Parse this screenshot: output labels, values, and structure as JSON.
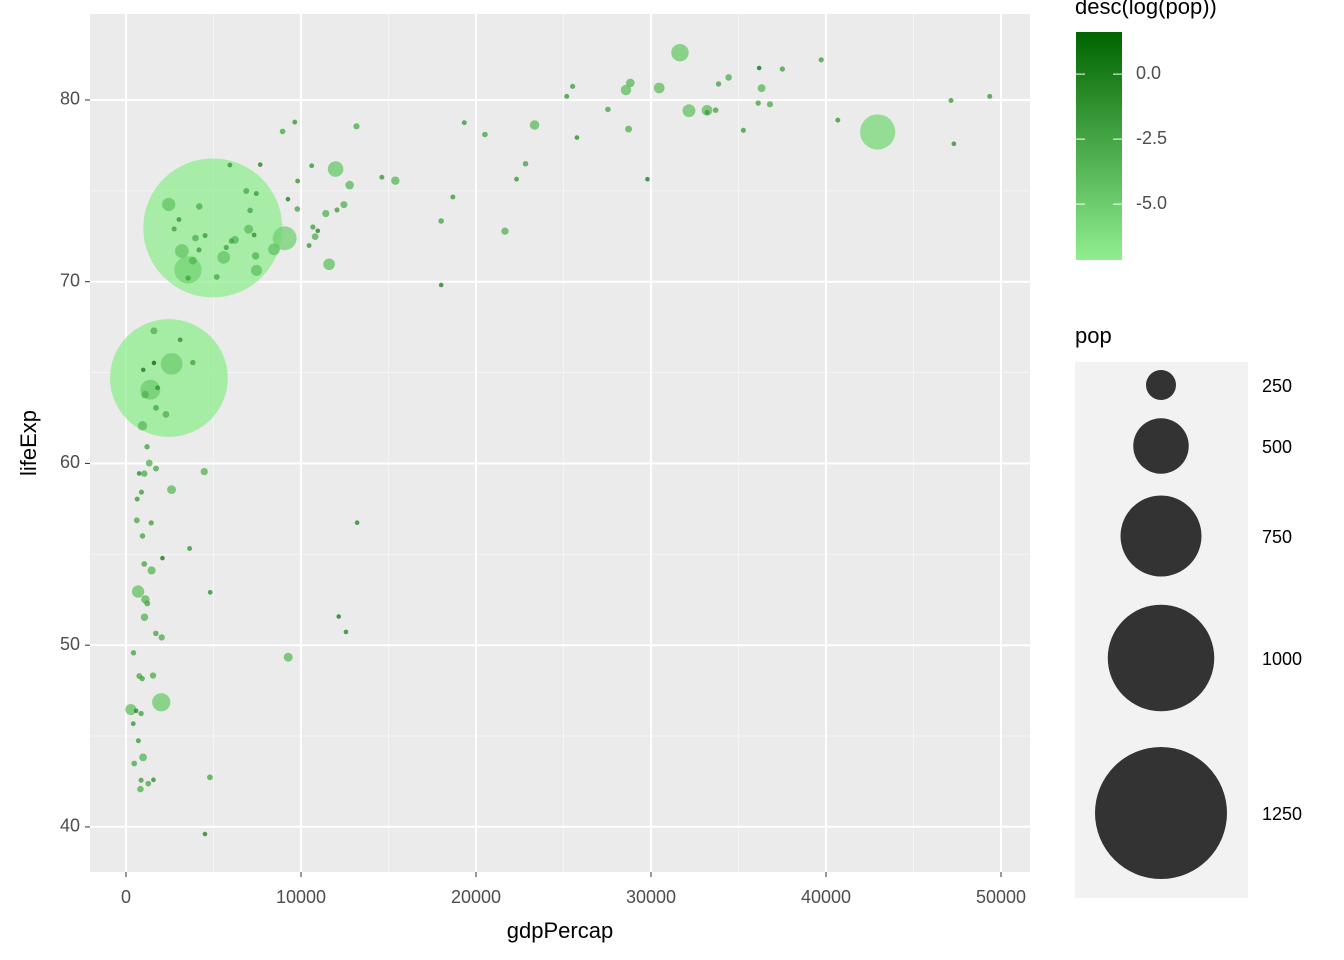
{
  "chart_data": {
    "type": "scatter",
    "x_label": "gdpPercap",
    "y_label": "lifeExp",
    "xlim": [
      -2057,
      51657
    ],
    "ylim": [
      37.52,
      84.73
    ],
    "xticks": [
      0,
      10000,
      20000,
      30000,
      40000,
      50000
    ],
    "yticks": [
      40,
      50,
      60,
      70,
      80
    ],
    "grid": true,
    "color_legend": {
      "title": "desc(log(pop))",
      "colorlim": [
        -7.15,
        1.62
      ],
      "low": "#90EE90",
      "high": "#006400",
      "ticks": [
        {
          "value": 0,
          "label": "0.0"
        },
        -2.5,
        {
          "value": -5,
          "label": "-5.0"
        }
      ]
    },
    "size_legend": {
      "title": "pop",
      "breaks": [
        250,
        500,
        750,
        1000,
        1250
      ],
      "color": "#333333"
    },
    "series": [
      {
        "name": "pop",
        "x": [
          975,
          5937,
          6223,
          4797,
          12779,
          34435,
          36126,
          29796,
          1391,
          33693,
          1441,
          3822,
          7446,
          12570,
          9066,
          10681,
          1217,
          430,
          1714,
          2042,
          36319,
          706,
          1704,
          13172,
          4959,
          7007,
          986,
          278,
          3633,
          9645,
          1545,
          14619,
          8948,
          22833,
          35278,
          2082,
          6025,
          6873,
          5581,
          5728,
          12154,
          641,
          691,
          33207,
          30470,
          13206,
          753,
          32170,
          1328,
          27538,
          5186,
          943,
          579,
          1202,
          3548,
          39725,
          18009,
          36181,
          2452,
          3541,
          11606,
          4471,
          40676,
          25523,
          28570,
          7321,
          31656,
          4519,
          1463,
          1593,
          23348,
          47307,
          10461,
          1569,
          415,
          12057,
          1045,
          759,
          12452,
          1043,
          1803,
          10957,
          11978,
          3096,
          9254,
          3820,
          824,
          944,
          4811,
          1091,
          36798,
          25185,
          2749,
          620,
          2014,
          49357,
          22316,
          2606,
          9809,
          4173,
          7409,
          3190,
          15390,
          20510,
          19329,
          7670,
          10808,
          863,
          1598,
          21655,
          1712,
          9787,
          863,
          47143,
          18678,
          25768,
          926,
          9270,
          28821,
          3970,
          2602,
          4513,
          33860,
          37506,
          4185,
          28718,
          1107,
          7458,
          883,
          18009,
          7093,
          8458,
          1056,
          33203,
          42952,
          10611,
          11416,
          2442,
          3025,
          2281,
          1271,
          470
        ],
        "y": [
          43.83,
          76.42,
          72.3,
          42.73,
          75.32,
          81.24,
          79.83,
          75.64,
          64.06,
          79.44,
          56.73,
          65.55,
          74.85,
          50.73,
          72.39,
          73.01,
          52.3,
          49.58,
          59.72,
          50.43,
          80.65,
          44.74,
          50.65,
          78.55,
          72.96,
          72.89,
          65.15,
          46.46,
          55.32,
          78.78,
          48.33,
          75.75,
          78.27,
          76.49,
          78.33,
          54.79,
          72.24,
          74.99,
          71.34,
          71.88,
          51.58,
          58.04,
          52.95,
          79.31,
          80.66,
          56.74,
          59.45,
          79.41,
          60.02,
          79.48,
          70.26,
          56.01,
          46.39,
          60.92,
          70.2,
          82.21,
          73.34,
          81.76,
          64.7,
          70.65,
          70.96,
          59.55,
          78.89,
          80.75,
          80.55,
          72.57,
          82.6,
          72.54,
          54.11,
          67.3,
          78.62,
          77.59,
          71.99,
          42.59,
          45.68,
          73.95,
          59.44,
          48.3,
          74.24,
          54.47,
          64.16,
          72.8,
          76.2,
          66.8,
          74.54,
          71.16,
          42.08,
          62.07,
          52.91,
          63.79,
          79.76,
          80.2,
          72.9,
          56.87,
          46.86,
          80.2,
          75.64,
          65.48,
          75.54,
          71.75,
          71.42,
          71.69,
          75.56,
          78.1,
          78.75,
          76.44,
          72.48,
          46.24,
          65.53,
          72.78,
          63.06,
          74.0,
          42.57,
          79.97,
          74.66,
          77.93,
          48.16,
          49.34,
          80.94,
          72.4,
          58.56,
          39.61,
          80.88,
          81.7,
          74.14,
          78.4,
          52.52,
          70.62,
          58.42,
          69.82,
          73.92,
          71.78,
          51.54,
          79.43,
          78.24,
          76.38,
          73.75,
          74.25,
          73.42,
          62.7,
          42.38,
          43.49
        ],
        "size": [
          31.9,
          3.6,
          33.3,
          12.4,
          40.3,
          20.4,
          8.2,
          0.71,
          150.4,
          10.4,
          8.1,
          9.1,
          4.6,
          1.6,
          190,
          7.3,
          14.3,
          8.4,
          14.1,
          17.7,
          33.4,
          4.4,
          10.2,
          16.3,
          1318.7,
          44.2,
          0.71,
          64.6,
          3.8,
          4.1,
          18.0,
          4.5,
          11.4,
          10.2,
          5.5,
          0.5,
          9.3,
          13.8,
          80.3,
          6.9,
          0.55,
          4.9,
          76.5,
          5.2,
          61.1,
          1.45,
          1.69,
          82.4,
          22.9,
          10.7,
          12.6,
          9.9,
          1.47,
          8.5,
          7.5,
          6.98,
          9.96,
          0.3,
          1110.4,
          223.5,
          69.5,
          27.5,
          4.1,
          6.4,
          58.1,
          2.8,
          127.5,
          6.1,
          35.6,
          23.3,
          49.0,
          2.5,
          3.9,
          2.0,
          3.2,
          6.0,
          19.2,
          13.3,
          24.8,
          12.0,
          3.3,
          1.25,
          108.7,
          2.9,
          0.68,
          33.8,
          19.95,
          47.8,
          2.06,
          28.9,
          16.6,
          4.1,
          5.7,
          12.9,
          135,
          4.6,
          3.2,
          169.3,
          3.2,
          6.7,
          28.7,
          91.1,
          38.5,
          10.6,
          3.9,
          0.8,
          22.3,
          8.9,
          0.2,
          27.6,
          12.3,
          10.2,
          6.1,
          4.55,
          5.4,
          2.0,
          9.1,
          44.0,
          40.4,
          20.4,
          42.3,
          1.1,
          9.0,
          7.55,
          19.3,
          23.2,
          38.1,
          65.1,
          5.7,
          1.06,
          10.3,
          71.2,
          29.2,
          60.8,
          301.1,
          3.4,
          26.1,
          85.3,
          4.0,
          22.2,
          11.7,
          12.3
        ]
      }
    ]
  }
}
